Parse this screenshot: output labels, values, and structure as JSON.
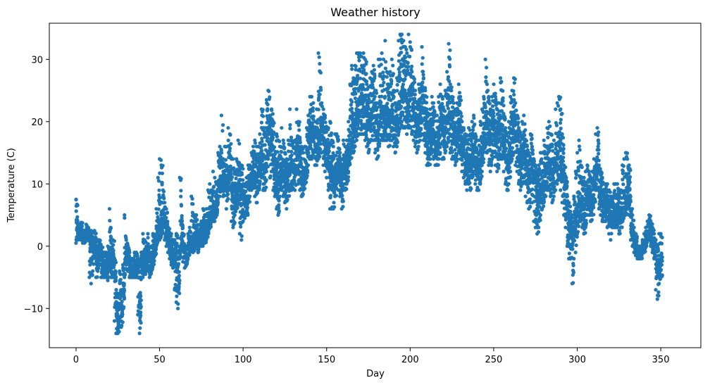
{
  "chart_data": {
    "type": "scatter",
    "title": "Weather history",
    "xlabel": "Day",
    "ylabel": "Temperature (C)",
    "xlim": [
      -16,
      374
    ],
    "ylim": [
      -16.3,
      35.8
    ],
    "xticks": [
      0,
      50,
      100,
      150,
      200,
      250,
      300,
      350
    ],
    "yticks": [
      -10,
      0,
      10,
      20,
      30
    ],
    "grid": false,
    "legend": "none",
    "marker_color": "#1f77b4",
    "samples_per_day": 24,
    "series": [
      {
        "daily_mean": [
          3.5,
          2.0,
          2.2,
          2.4,
          1.3,
          1.4,
          2.0,
          2.1,
          1.0,
          -0.5,
          -1.0,
          0.5,
          -2.3,
          -1.2,
          -0.8,
          -2.0,
          -2.4,
          -3.0,
          -3.2,
          -3.0,
          -0.4,
          -2.3,
          -2.0,
          -5.0,
          -10.3,
          -12.0,
          -8.0,
          -10.0,
          -7.0,
          -2.6,
          -1.0,
          -2.0,
          -3.0,
          -3.5,
          -3.5,
          -2.8,
          -3.2,
          -4.0,
          -9.0,
          -3.3,
          -2.2,
          -2.7,
          -1.9,
          -1.2,
          -3.2,
          -2.6,
          -1.5,
          -0.6,
          2.2,
          3.9,
          3.2,
          4.0,
          4.5,
          3.0,
          2.0,
          1.0,
          -0.6,
          -1.0,
          -1.5,
          -3.0,
          -4.0,
          -5.5,
          0.0,
          2.0,
          -0.5,
          -1.6,
          -2.0,
          -0.4,
          0.4,
          1.6,
          0.5,
          1.0,
          1.4,
          0.5,
          1.0,
          1.3,
          2.4,
          1.8,
          2.2,
          3.6,
          5.0,
          5.5,
          6.6,
          6.2,
          7.0,
          9.8,
          10.5,
          11.3,
          10.0,
          11.2,
          9.0,
          11.7,
          12.2,
          8.8,
          7.0,
          7.9,
          9.8,
          10.0,
          6.9,
          7.9,
          7.5,
          7.0,
          8.0,
          9.5,
          10.3,
          11.0,
          13.0,
          11.4,
          11.0,
          12.0,
          13.5,
          15.0,
          13.0,
          12.6,
          18.0,
          19.0,
          16.0,
          17.0,
          14.0,
          13.0,
          11.0,
          10.0,
          11.7,
          13.0,
          12.0,
          11.0,
          10.0,
          12.0,
          14.0,
          12.3,
          12.7,
          12.2,
          16.0,
          14.5,
          13.0,
          11.0,
          12.0,
          12.5,
          15.0,
          17.0,
          18.7,
          19.0,
          18.2,
          16.0,
          16.0,
          18.0,
          20.2,
          19.4,
          17.0,
          15.5,
          14.0,
          13.0,
          12.0,
          11.0,
          10.0,
          11.5,
          13.0,
          12.5,
          11.0,
          10.0,
          13.0,
          12.0,
          13.0,
          15.0,
          18.0,
          20.0,
          19.0,
          20.0,
          21.0,
          23.0,
          24.0,
          23.5,
          23.8,
          22.0,
          21.0,
          20.0,
          21.0,
          22.0,
          22.0,
          20.0,
          18.0,
          20.0,
          21.0,
          22.0,
          21.0,
          22.0,
          22.0,
          20.0,
          21.0,
          22.0,
          20.0,
          19.0,
          20.0,
          23.0,
          24.0,
          26.0,
          25.0,
          24.0,
          23.0,
          25.0,
          25.0,
          22.0,
          22.0,
          20.0,
          19.0,
          21.0,
          22.0,
          24.0,
          22.0,
          20.0,
          17.0,
          17.0,
          18.0,
          19.0,
          18.0,
          17.0,
          17.0,
          19.0,
          20.0,
          19.0,
          18.0,
          20.0,
          21.0,
          22.0,
          20.0,
          19.0,
          18.0,
          17.0,
          18.0,
          20.0,
          19.0,
          16.0,
          15.0,
          14.0,
          13.0,
          14.0,
          13.0,
          15.0,
          16.0,
          14.0,
          12.0,
          13.0,
          15.0,
          17.0,
          19.0,
          21.0,
          20.0,
          18.0,
          17.0,
          19.0,
          20.0,
          18.0,
          17.0,
          18.0,
          19.0,
          19.0,
          16.0,
          14.0,
          13.0,
          15.0,
          18.0,
          19.0,
          20.0,
          18.0,
          17.0,
          15.0,
          14.0,
          15.0,
          16.0,
          13.0,
          12.0,
          11.0,
          12.0,
          12.0,
          11.0,
          9.0,
          7.0,
          8.0,
          9.0,
          10.0,
          11.0,
          12.0,
          14.0,
          13.0,
          12.0,
          11.0,
          12.0,
          14.0,
          15.0,
          16.0,
          14.0,
          12.0,
          10.0,
          8.0,
          5.0,
          3.0,
          2.0,
          1.0,
          3.0,
          5.0,
          6.0,
          7.0,
          7.0,
          6.0,
          6.0,
          7.0,
          9.0,
          8.0,
          7.0,
          8.0,
          10.0,
          13.0,
          12.0,
          9.0,
          8.0,
          7.0,
          7.0,
          7.0,
          6.0,
          5.0,
          4.0,
          5.0,
          6.0,
          6.0,
          6.0,
          5.0,
          5.0,
          6.0,
          7.0,
          8.0,
          9.0,
          8.0,
          3.0,
          2.0,
          1.0,
          0.0,
          -1.0,
          -1.0,
          -1.0,
          0.0,
          0.0,
          1.0,
          2.0,
          2.0,
          1.0,
          0.0,
          0.0,
          -3.0,
          -4.0,
          -3.0,
          -2.0
        ],
        "daily_min": [
          0.5,
          1.0,
          1.2,
          1.0,
          0.5,
          0.5,
          1.0,
          1.0,
          -5.0,
          -6.0,
          -4.0,
          -1.0,
          -5.0,
          -4.0,
          -3.0,
          -5.0,
          -5.0,
          -5.0,
          -5.0,
          -5.5,
          -4.0,
          -5.0,
          -5.0,
          -12.0,
          -14.0,
          -14.0,
          -13.0,
          -13.0,
          -10.0,
          -5.0,
          -3.0,
          -4.0,
          -5.0,
          -5.0,
          -5.0,
          -5.0,
          -5.0,
          -11.0,
          -14.0,
          -5.0,
          -5.0,
          -4.5,
          -4.0,
          -4.0,
          -5.0,
          -4.0,
          -3.0,
          -1.5,
          0.0,
          1.0,
          1.0,
          2.0,
          3.0,
          1.0,
          0.0,
          -1.0,
          -2.0,
          -3.0,
          -3.5,
          -7.0,
          -9.0,
          -10.0,
          -2.0,
          0.0,
          -2.5,
          -3.5,
          -3.0,
          -1.5,
          -1.0,
          0.0,
          -1.0,
          -0.5,
          0.0,
          -1.0,
          0.0,
          0.0,
          1.0,
          0.5,
          1.0,
          2.0,
          3.0,
          4.0,
          4.0,
          4.0,
          5.0,
          7.0,
          8.0,
          9.0,
          8.0,
          9.0,
          6.0,
          9.0,
          9.0,
          4.0,
          3.0,
          5.0,
          6.0,
          7.0,
          2.0,
          1.0,
          4.0,
          4.5,
          5.0,
          7.0,
          8.0,
          9.0,
          10.0,
          8.0,
          7.0,
          9.0,
          10.0,
          11.0,
          9.0,
          9.0,
          12.0,
          14.0,
          11.0,
          12.0,
          9.0,
          8.0,
          6.0,
          5.0,
          8.0,
          9.0,
          8.0,
          7.0,
          6.0,
          8.0,
          9.0,
          9.0,
          10.0,
          9.0,
          12.0,
          10.0,
          9.0,
          8.0,
          9.0,
          10.0,
          11.0,
          13.0,
          14.0,
          14.0,
          15.0,
          13.0,
          13.0,
          14.0,
          15.0,
          15.0,
          13.0,
          12.0,
          11.0,
          9.0,
          6.0,
          6.0,
          6.0,
          8.0,
          10.0,
          9.0,
          8.0,
          6.0,
          10.0,
          9.0,
          10.0,
          12.0,
          14.0,
          16.0,
          15.0,
          16.0,
          17.0,
          18.0,
          18.0,
          18.0,
          18.0,
          17.0,
          16.0,
          15.0,
          17.0,
          17.0,
          17.0,
          15.0,
          14.0,
          16.0,
          17.0,
          17.0,
          17.0,
          17.0,
          17.0,
          16.0,
          17.0,
          17.0,
          16.0,
          15.0,
          16.0,
          18.0,
          19.0,
          20.0,
          19.0,
          19.0,
          18.0,
          19.0,
          19.0,
          18.0,
          17.0,
          16.0,
          15.0,
          16.0,
          17.0,
          18.0,
          17.0,
          15.0,
          13.0,
          13.0,
          14.0,
          15.0,
          14.0,
          13.0,
          13.0,
          14.0,
          15.0,
          14.0,
          14.0,
          15.0,
          16.0,
          17.0,
          15.0,
          14.0,
          14.0,
          13.0,
          14.0,
          15.0,
          14.0,
          12.0,
          11.0,
          10.0,
          9.0,
          10.0,
          9.0,
          11.0,
          12.0,
          10.0,
          9.0,
          9.0,
          10.0,
          12.0,
          14.0,
          16.0,
          15.0,
          13.0,
          12.0,
          14.0,
          15.0,
          13.0,
          12.0,
          13.0,
          14.0,
          14.0,
          12.0,
          10.0,
          9.0,
          10.0,
          12.0,
          14.0,
          15.0,
          13.0,
          12.0,
          10.0,
          9.0,
          10.0,
          11.0,
          8.0,
          7.0,
          6.0,
          7.0,
          7.0,
          4.0,
          3.0,
          2.0,
          4.0,
          5.0,
          6.0,
          7.0,
          8.0,
          9.0,
          9.0,
          8.0,
          7.0,
          8.0,
          9.0,
          10.0,
          11.0,
          9.0,
          7.0,
          5.0,
          3.0,
          0.0,
          -2.0,
          -2.0,
          -6.0,
          -2.0,
          -1.0,
          2.0,
          4.0,
          4.0,
          3.0,
          2.0,
          3.0,
          5.0,
          5.0,
          4.0,
          5.0,
          7.0,
          9.0,
          9.0,
          6.0,
          5.0,
          4.0,
          4.0,
          4.0,
          3.0,
          2.0,
          1.0,
          3.0,
          3.0,
          3.0,
          3.0,
          2.0,
          3.0,
          4.0,
          5.0,
          5.0,
          6.0,
          5.0,
          1.0,
          0.0,
          -1.0,
          -1.5,
          -2.0,
          -2.0,
          -2.0,
          -1.0,
          -1.0,
          0.0,
          1.0,
          1.0,
          0.0,
          -1.0,
          -2.0,
          -7.0,
          -8.5,
          -6.0,
          -5.0
        ],
        "daily_max": [
          7.5,
          3.5,
          3.5,
          3.8,
          2.5,
          2.5,
          3.5,
          3.0,
          2.5,
          2.5,
          1.5,
          2.5,
          -0.5,
          1.0,
          1.0,
          0.0,
          -1.0,
          -1.0,
          -1.0,
          0.0,
          6.0,
          0.5,
          1.0,
          -2.0,
          -7.0,
          -8.0,
          -4.0,
          -7.0,
          -3.0,
          5.0,
          1.0,
          0.0,
          -1.0,
          -2.0,
          -2.0,
          -1.0,
          -1.0,
          -2.0,
          -5.0,
          -1.0,
          2.0,
          1.0,
          0.0,
          2.0,
          -1.0,
          0.0,
          2.0,
          1.0,
          6.0,
          11.0,
          14.0,
          13.0,
          9.0,
          7.0,
          6.0,
          3.0,
          2.0,
          2.0,
          1.0,
          1.0,
          2.0,
          0.0,
          11.0,
          6.5,
          2.0,
          0.0,
          0.0,
          2.0,
          3.0,
          8.0,
          4.0,
          5.0,
          5.0,
          2.5,
          3.5,
          4.0,
          6.0,
          5.0,
          6.0,
          9.0,
          10.0,
          9.0,
          12.0,
          11.0,
          10.0,
          15.0,
          16.0,
          21.0,
          14.0,
          16.0,
          13.0,
          19.0,
          18.0,
          14.0,
          14.0,
          12.0,
          14.0,
          17.0,
          12.0,
          13.0,
          10.0,
          10.0,
          11.0,
          13.0,
          13.0,
          15.0,
          16.0,
          17.0,
          16.0,
          16.0,
          18.0,
          22.0,
          19.0,
          19.0,
          23.5,
          25.0,
          21.0,
          22.0,
          20.0,
          18.0,
          18.0,
          17.0,
          16.0,
          19.0,
          17.0,
          15.0,
          14.0,
          17.0,
          22.0,
          17.0,
          16.0,
          17.0,
          22.0,
          20.0,
          17.0,
          16.0,
          15.0,
          16.0,
          19.0,
          21.0,
          24.0,
          24.0,
          23.0,
          20.0,
          22.0,
          31.0,
          28.0,
          23.0,
          22.0,
          21.0,
          19.0,
          19.0,
          20.0,
          17.0,
          16.0,
          18.0,
          18.0,
          17.0,
          15.0,
          14.0,
          17.0,
          16.0,
          17.0,
          20.0,
          26.0,
          29.0,
          27.0,
          29.0,
          31.0,
          31.0,
          31.0,
          29.0,
          31.0,
          30.0,
          26.0,
          24.0,
          27.0,
          28.0,
          29.0,
          25.0,
          23.0,
          30.0,
          30.0,
          31.0,
          30.0,
          33.0,
          28.0,
          26.0,
          28.0,
          30.0,
          25.0,
          23.0,
          27.0,
          33.0,
          34.0,
          34.0,
          33.0,
          32.0,
          31.0,
          34.0,
          32.0,
          28.0,
          27.0,
          25.0,
          23.0,
          26.0,
          26.0,
          32.0,
          27.0,
          25.0,
          22.0,
          21.0,
          22.0,
          24.0,
          23.0,
          21.0,
          21.0,
          24.0,
          26.0,
          24.0,
          22.0,
          25.0,
          28.0,
          32.5,
          26.0,
          24.0,
          23.0,
          22.0,
          23.0,
          26.0,
          24.0,
          20.0,
          19.0,
          18.0,
          17.0,
          19.0,
          18.0,
          20.0,
          21.0,
          18.0,
          15.0,
          17.0,
          20.0,
          22.0,
          24.0,
          30.0,
          26.0,
          24.0,
          22.0,
          24.0,
          26.0,
          24.0,
          22.0,
          23.0,
          27.0,
          25.0,
          21.0,
          19.0,
          17.0,
          20.0,
          24.0,
          25.0,
          27.0,
          23.0,
          21.0,
          19.0,
          18.0,
          20.0,
          21.0,
          17.0,
          16.0,
          15.0,
          18.0,
          16.0,
          14.0,
          13.0,
          12.0,
          13.0,
          15.0,
          15.0,
          17.0,
          16.0,
          19.0,
          20.0,
          18.0,
          16.0,
          17.0,
          22.0,
          23.0,
          24.0,
          22.0,
          18.0,
          13.0,
          11.0,
          8.0,
          7.0,
          5.0,
          5.0,
          8.0,
          12.0,
          15.0,
          17.0,
          13.0,
          10.0,
          11.0,
          12.0,
          13.0,
          12.0,
          11.0,
          12.0,
          14.0,
          18.0,
          19.0,
          13.0,
          12.0,
          11.0,
          10.0,
          10.0,
          10.0,
          9.0,
          8.0,
          8.0,
          10.0,
          10.0,
          10.0,
          9.0,
          9.0,
          13.0,
          14.0,
          15.0,
          14.0,
          13.0,
          6.0,
          5.0,
          3.0,
          2.0,
          0.0,
          0.0,
          0.0,
          1.0,
          2.0,
          3.0,
          4.0,
          5.0,
          4.0,
          3.0,
          2.0,
          1.0,
          0.0,
          2.0,
          2.0
        ]
      }
    ]
  }
}
